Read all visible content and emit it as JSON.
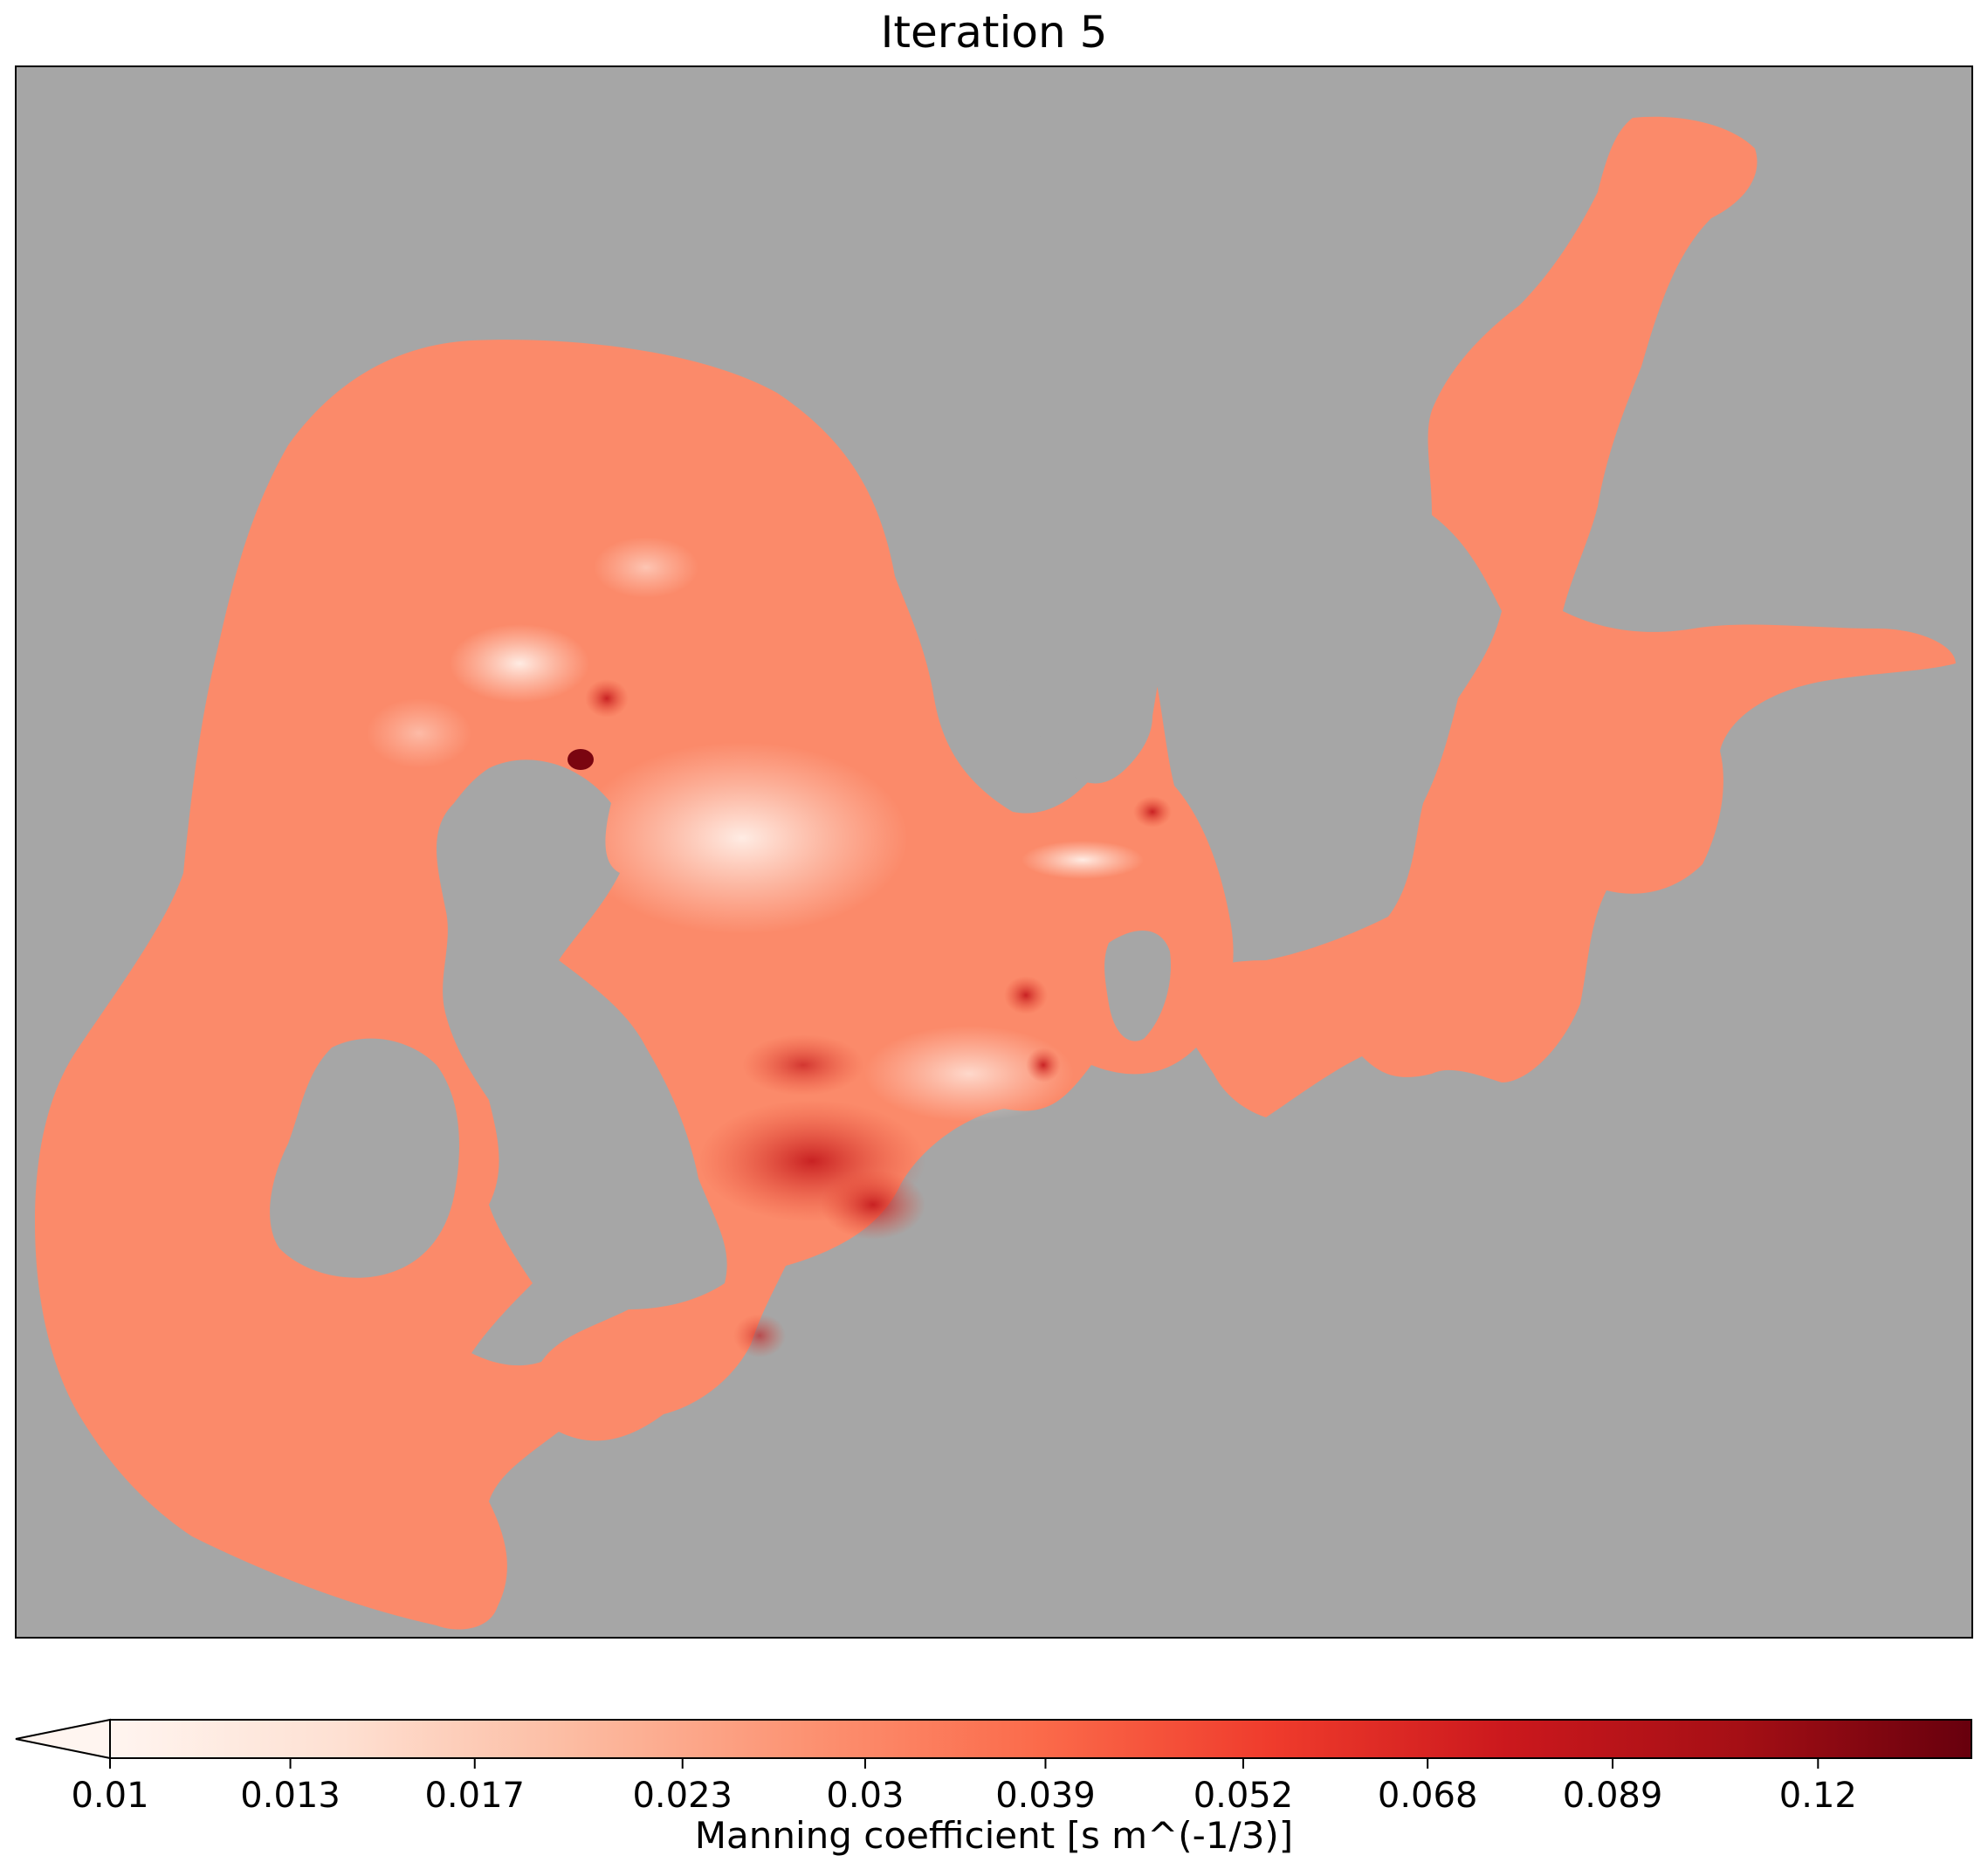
{
  "title": "Iteration 5",
  "colors": {
    "land": "#a6a6a6",
    "sea_base": "#fb8a6a",
    "colormap": "Reds"
  },
  "colorbar": {
    "label": "Manning coefficient [s m^(-1/3)]",
    "scale": "log",
    "extend": "min",
    "range": [
      0.01,
      0.15
    ],
    "ticks": [
      "0.01",
      "0.013",
      "0.017",
      "0.023",
      "0.03",
      "0.039",
      "0.052",
      "0.068",
      "0.089",
      "0.12"
    ]
  }
}
